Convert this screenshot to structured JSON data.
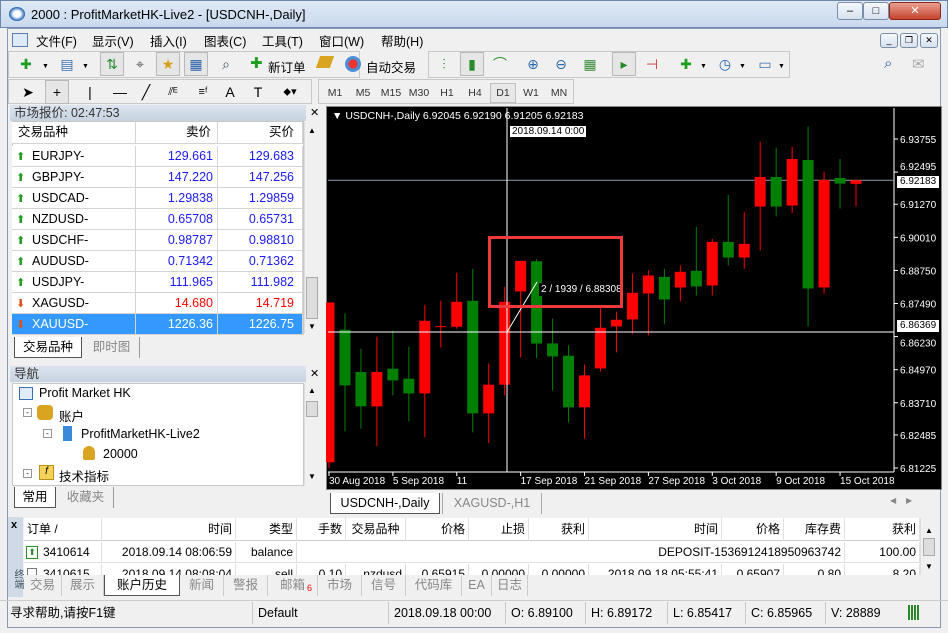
{
  "window": {
    "title": "2000     : ProfitMarketHK-Live2 - [USDCNH-,Daily]",
    "minimize": "–",
    "maximize": "□",
    "close": "✕"
  },
  "menu": [
    "文件(F)",
    "显示(V)",
    "插入(I)",
    "图表(C)",
    "工具(T)",
    "窗口(W)",
    "帮助(H)"
  ],
  "toolbar": {
    "new_order": "新订单",
    "auto_trading": "自动交易"
  },
  "timeframes": [
    "M1",
    "M5",
    "M15",
    "M30",
    "H1",
    "H4",
    "D1",
    "W1",
    "MN"
  ],
  "active_timeframe": "D1",
  "market_watch": {
    "title": "市场报价: 02:47:53",
    "columns": [
      "交易品种",
      "卖价",
      "买价"
    ],
    "rows": [
      {
        "symbol": "EURJPY-",
        "bid": "129.661",
        "ask": "129.683",
        "dir": "up"
      },
      {
        "symbol": "GBPJPY-",
        "bid": "147.220",
        "ask": "147.256",
        "dir": "up"
      },
      {
        "symbol": "USDCAD-",
        "bid": "1.29838",
        "ask": "1.29859",
        "dir": "up"
      },
      {
        "symbol": "NZDUSD-",
        "bid": "0.65708",
        "ask": "0.65731",
        "dir": "up"
      },
      {
        "symbol": "USDCHF-",
        "bid": "0.98787",
        "ask": "0.98810",
        "dir": "up"
      },
      {
        "symbol": "AUDUSD-",
        "bid": "0.71342",
        "ask": "0.71362",
        "dir": "up"
      },
      {
        "symbol": "USDJPY-",
        "bid": "111.965",
        "ask": "111.982",
        "dir": "up"
      },
      {
        "symbol": "XAGUSD-",
        "bid": "14.680",
        "ask": "14.719",
        "dir": "down"
      },
      {
        "symbol": "XAUUSD-",
        "bid": "1226.36",
        "ask": "1226.75",
        "dir": "down",
        "selected": true
      }
    ],
    "tabs": [
      "交易品种",
      "即时图"
    ],
    "colors": {
      "up": "#1a1aff",
      "down": "#ff0000",
      "selected_bg": "#3399ff"
    }
  },
  "navigator": {
    "title": "导航",
    "items": [
      "Profit Market HK",
      "账户",
      "ProfitMarketHK-Live2",
      "20000",
      "技术指标"
    ],
    "tabs": [
      "常用",
      "收藏夹"
    ]
  },
  "chart": {
    "header": "USDCNH-,Daily  6.92045 6.92190 6.91205 6.92183",
    "current_price": "6.92183",
    "crosshair_price": "6.86369",
    "crosshair_date": "2018.09.14 0:00",
    "tooltip": "2 / 1939 / 6.88308",
    "tabs": [
      "USDCNH-,Daily",
      "XAGUSD-,H1"
    ],
    "colors": {
      "up": "#ff0000",
      "down": "#008000",
      "bg": "#000000"
    }
  },
  "chart_data": {
    "type": "candlestick",
    "symbol": "USDCNH-",
    "period": "Daily",
    "ylim": [
      6.81225,
      6.94224
    ],
    "y_ticks": [
      "6.93755",
      "6.92495",
      "6.91270",
      "6.90010",
      "6.88750",
      "6.87490",
      "6.86230",
      "6.84970",
      "6.83710",
      "6.82485",
      "6.81225"
    ],
    "x_ticks": [
      {
        "i": 0,
        "label": "30 Aug 2018"
      },
      {
        "i": 4,
        "label": "5 Sep 2018"
      },
      {
        "i": 8,
        "label": "11"
      },
      {
        "i": 12,
        "label": "17 Sep 2018"
      },
      {
        "i": 16,
        "label": "21 Sep 2018"
      },
      {
        "i": 20,
        "label": "27 Sep 2018"
      },
      {
        "i": 24,
        "label": "3 Oct 2018"
      },
      {
        "i": 28,
        "label": "9 Oct 2018"
      },
      {
        "i": 32,
        "label": "15 Oct 2018"
      }
    ],
    "ohlc": [
      [
        6.81443,
        6.87529,
        6.81225,
        6.87529
      ],
      [
        6.86489,
        6.87111,
        6.82622,
        6.84372
      ],
      [
        6.84879,
        6.85767,
        6.82723,
        6.83573
      ],
      [
        6.83573,
        6.86223,
        6.82051,
        6.84879
      ],
      [
        6.85006,
        6.86451,
        6.83991,
        6.84562
      ],
      [
        6.84625,
        6.85843,
        6.83002,
        6.84067
      ],
      [
        6.84067,
        6.8744,
        6.82394,
        6.86832
      ],
      [
        6.86629,
        6.87593,
        6.85817,
        6.86629
      ],
      [
        6.86603,
        6.88658,
        6.86527,
        6.87554
      ],
      [
        6.87593,
        6.8881,
        6.82584,
        6.83307
      ],
      [
        6.83307,
        6.85209,
        6.82178,
        6.84397
      ],
      [
        6.84397,
        6.88125,
        6.83991,
        6.87554
      ],
      [
        6.87948,
        6.89114,
        6.85437,
        6.89114
      ],
      [
        6.891,
        6.89172,
        6.85417,
        6.85965
      ],
      [
        6.85969,
        6.86908,
        6.84182,
        6.85475
      ],
      [
        6.855,
        6.85893,
        6.82964,
        6.83535
      ],
      [
        6.83535,
        6.85158,
        6.82343,
        6.84752
      ],
      [
        6.85018,
        6.87314,
        6.84904,
        6.86565
      ],
      [
        6.86616,
        6.87174,
        6.85627,
        6.8687
      ],
      [
        6.86882,
        6.88632,
        6.86325,
        6.87897
      ],
      [
        6.87872,
        6.88759,
        6.86274,
        6.88556
      ],
      [
        6.88505,
        6.8881,
        6.86705,
        6.87643
      ],
      [
        6.881,
        6.88937,
        6.87567,
        6.88696
      ],
      [
        6.88734,
        6.90407,
        6.87795,
        6.88138
      ],
      [
        6.88176,
        6.89951,
        6.87795,
        6.89837
      ],
      [
        6.89837,
        6.91625,
        6.88937,
        6.89241
      ],
      [
        6.89241,
        6.90978,
        6.8881,
        6.89761
      ],
      [
        6.91181,
        6.93654,
        6.89507,
        6.92309
      ],
      [
        6.92309,
        6.93425,
        6.90801,
        6.91181
      ],
      [
        6.91219,
        6.93451,
        6.9094,
        6.92994
      ],
      [
        6.92956,
        6.94224,
        6.86616,
        6.88062
      ],
      [
        6.881,
        6.92512,
        6.87871,
        6.92195
      ],
      [
        6.92271,
        6.92994,
        6.91105,
        6.92056
      ],
      [
        6.92045,
        6.9219,
        6.91205,
        6.92183
      ]
    ]
  },
  "terminal": {
    "side_label": "终端",
    "columns": [
      "订单  /",
      "时间",
      "类型",
      "手数",
      "交易品种",
      "价格",
      "止损",
      "获利",
      "时间",
      "价格",
      "库存费",
      "获利"
    ],
    "rows": [
      {
        "order": "3410614",
        "time": "2018.09.14 08:06:59",
        "type": "balance",
        "comment": "DEPOSIT-1536912418950963742",
        "profit": "100.00"
      },
      {
        "order": "3410615",
        "time": "2018.09.14 08:08:04",
        "type": "sell",
        "lots": "0.10",
        "symbol": "nzdusd",
        "price": "0.65915",
        "sl": "0.00000",
        "tp": "0.00000",
        "close_time": "2018.09.18 05:55:41",
        "close_price": "0.65907",
        "swap": "0.80",
        "profit": "8.20"
      }
    ],
    "tabs": [
      "交易",
      "展示",
      "账户历史",
      "新闻",
      "警报",
      "邮箱",
      "市场",
      "信号",
      "代码库",
      "EA",
      "日志"
    ],
    "mail_count": "6",
    "active_tab": "账户历史"
  },
  "status": {
    "help": "寻求帮助,请按F1键",
    "profile": "Default",
    "date": "2018.09.18 00:00",
    "open": "O: 6.89100",
    "high": "H: 6.89172",
    "low": "L: 6.85417",
    "close": "C: 6.85965",
    "volume": "V: 28889"
  }
}
